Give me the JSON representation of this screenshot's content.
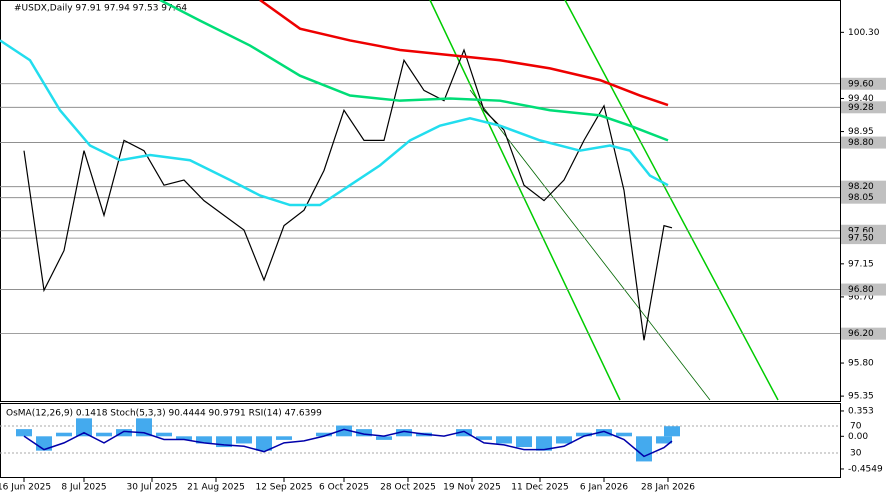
{
  "chart_data": [
    {
      "type": "line",
      "title": "#USDX,Daily  97.91 97.94 97.53 97.64",
      "x": [
        0,
        5,
        10,
        15,
        20,
        25,
        30,
        35,
        40,
        45,
        50,
        55,
        60,
        65,
        70,
        75,
        80,
        85,
        90,
        95,
        100,
        105,
        110,
        115,
        120,
        125,
        130,
        135,
        140,
        145,
        150,
        155,
        160,
        162
      ],
      "xlim": [
        -6,
        204
      ],
      "xticks": [
        {
          "value": 0,
          "label": "16 Jun 2025"
        },
        {
          "value": 15,
          "label": "8 Jul 2025"
        },
        {
          "value": 32,
          "label": "30 Jul 2025"
        },
        {
          "value": 48,
          "label": "21 Aug 2025"
        },
        {
          "value": 65,
          "label": "12 Sep 2025"
        },
        {
          "value": 80,
          "label": "6 Oct 2025"
        },
        {
          "value": 96,
          "label": "28 Oct 2025"
        },
        {
          "value": 112,
          "label": "19 Nov 2025"
        },
        {
          "value": 129,
          "label": "11 Dec 2025"
        },
        {
          "value": 145,
          "label": "6 Jan 2026"
        },
        {
          "value": 161,
          "label": "28 Jan 2026"
        }
      ],
      "ylim": [
        95.27,
        100.74
      ],
      "yticks": [
        {
          "value": 100.3,
          "label": "100.30"
        },
        {
          "value": 99.4,
          "label": "99.40"
        },
        {
          "value": 98.95,
          "label": "98.95"
        },
        {
          "value": 97.15,
          "label": "97.15"
        },
        {
          "value": 96.7,
          "label": "96.70"
        },
        {
          "value": 95.8,
          "label": "95.80"
        },
        {
          "value": 95.35,
          "label": "95.35"
        }
      ],
      "levels": [
        {
          "value": 99.6,
          "label": "99.60"
        },
        {
          "value": 99.28,
          "label": "99.28"
        },
        {
          "value": 98.8,
          "label": "98.80"
        },
        {
          "value": 98.2,
          "label": "98.20"
        },
        {
          "value": 98.05,
          "label": "98.05"
        },
        {
          "value": 97.6,
          "label": "97.60"
        },
        {
          "value": 97.5,
          "label": "97.50"
        },
        {
          "value": 96.8,
          "label": "96.80"
        },
        {
          "value": 96.2,
          "label": "96.20"
        }
      ],
      "series": [
        {
          "color": "#000000",
          "x": [
            0,
            5,
            10,
            15,
            20,
            25,
            30,
            35,
            40,
            45,
            50,
            55,
            60,
            65,
            70,
            75,
            80,
            85,
            90,
            95,
            100,
            105,
            110,
            115,
            120,
            125,
            130,
            135,
            140,
            145,
            150,
            155,
            160,
            162
          ],
          "values": [
            98.69,
            96.79,
            97.33,
            98.69,
            97.81,
            98.83,
            98.69,
            98.22,
            98.29,
            98.01,
            97.81,
            97.61,
            96.93,
            97.67,
            97.88,
            98.42,
            99.24,
            98.83,
            98.83,
            99.92,
            99.51,
            99.37,
            100.06,
            99.24,
            98.97,
            98.22,
            98.01,
            98.29,
            98.83,
            99.3,
            98.15,
            96.11,
            97.67,
            97.64
          ]
        },
        {
          "color": "#ee0000",
          "x": [
            59,
            69,
            81.5,
            94,
            106.5,
            119,
            131.5,
            144,
            154,
            161
          ],
          "values": [
            100.74,
            100.35,
            100.19,
            100.06,
            99.99,
            99.92,
            99.81,
            99.65,
            99.44,
            99.31
          ]
        },
        {
          "color": "#00dd77",
          "x": [
            34,
            44,
            56.5,
            69,
            81.5,
            94,
            106.5,
            119,
            131.5,
            144,
            151.5,
            161
          ],
          "values": [
            100.74,
            100.46,
            100.12,
            99.71,
            99.44,
            99.37,
            99.4,
            99.37,
            99.24,
            99.17,
            99.03,
            98.83
          ]
        },
        {
          "color": "#22ddee",
          "x": [
            -6,
            1.5,
            9,
            16.5,
            24,
            31.5,
            41.5,
            51.5,
            59,
            66.5,
            74,
            81.5,
            89,
            96.5,
            104,
            111.5,
            119,
            129,
            139,
            146.5,
            151.5,
            156.5,
            161
          ],
          "values": [
            100.19,
            99.92,
            99.24,
            98.76,
            98.56,
            98.63,
            98.56,
            98.29,
            98.08,
            97.95,
            97.95,
            98.22,
            98.49,
            98.83,
            99.03,
            99.13,
            99.03,
            98.83,
            98.69,
            98.76,
            98.69,
            98.35,
            98.22
          ]
        }
      ]
    },
    {
      "type": "bar",
      "title": "OsMA(12,26,9) 0.1418  Stoch(5,3,3) 90.4444 90.9791  RSI(14) 47.6399",
      "x": [
        0,
        5,
        10,
        15,
        20,
        25,
        30,
        35,
        40,
        45,
        50,
        55,
        60,
        65,
        70,
        75,
        80,
        85,
        90,
        95,
        100,
        105,
        110,
        115,
        120,
        125,
        130,
        135,
        140,
        145,
        150,
        155,
        160,
        162
      ],
      "xlim": [
        -6,
        204
      ],
      "ylim": [
        -0.4549,
        0.353
      ],
      "yticks": [
        0.353,
        {
          "value": 0,
          "label": "0.00"
        },
        -0.4549
      ],
      "y2lim": [
        0,
        100
      ],
      "y2ticks": [
        70,
        30
      ],
      "series": [
        {
          "color": "#44aaee",
          "values": [
            0.1,
            -0.2,
            0.05,
            0.25,
            0.05,
            0.1,
            0.25,
            0.05,
            -0.05,
            -0.1,
            -0.15,
            -0.1,
            -0.2,
            -0.05,
            0,
            0.05,
            0.15,
            0.1,
            -0.05,
            0.1,
            0.05,
            0,
            0.1,
            -0.05,
            -0.1,
            -0.15,
            -0.2,
            -0.1,
            0.05,
            0.1,
            0.05,
            -0.35,
            -0.1,
            0.14
          ]
        },
        {
          "color": "#0000aa",
          "axis": "y2",
          "values": [
            55,
            35,
            45,
            60,
            45,
            62,
            60,
            50,
            50,
            45,
            42,
            40,
            32,
            45,
            48,
            55,
            65,
            58,
            55,
            62,
            58,
            55,
            62,
            45,
            42,
            35,
            35,
            40,
            55,
            62,
            50,
            25,
            38,
            47.6
          ]
        }
      ]
    }
  ]
}
